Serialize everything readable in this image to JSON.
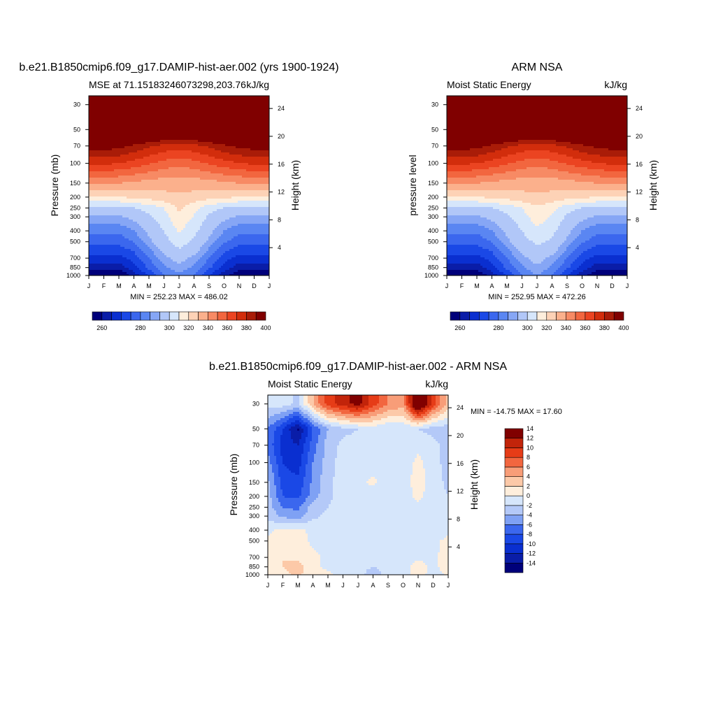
{
  "chart_data": [
    {
      "type": "heatmap",
      "title": "b.e21.B1850cmip6.f09_g17.DAMIP-hist-aer.002 (yrs 1900-1924)",
      "left_string": "MSE at 71.15183246073298,203.76",
      "right_string": "kJ/kg",
      "ylabel": "Pressure (mb)",
      "ylabel_right": "Height (km)",
      "x_ticks": [
        "J",
        "F",
        "M",
        "A",
        "M",
        "J",
        "J",
        "A",
        "S",
        "O",
        "N",
        "D",
        "J"
      ],
      "y_ticks": [
        30,
        50,
        70,
        100,
        150,
        200,
        250,
        300,
        400,
        500,
        700,
        850,
        1000
      ],
      "y_ticks_right": [
        4,
        8,
        12,
        16,
        20,
        24
      ],
      "stats": "MIN = 252.23 MAX = 486.02",
      "min": 252.23,
      "max": 486.02,
      "levels": [
        260,
        265,
        270,
        275,
        280,
        285,
        290,
        300,
        310,
        320,
        330,
        340,
        350,
        360,
        370,
        380,
        390,
        400
      ],
      "colorbar_labels": [
        "260",
        "280",
        "300",
        "320",
        "340",
        "360",
        "380",
        "400"
      ],
      "rows": [
        {
          "p": 1000,
          "v": [
            254,
            254,
            254,
            262,
            271,
            280,
            284,
            280,
            270,
            262,
            256,
            254,
            254
          ]
        },
        {
          "p": 850,
          "v": [
            262,
            262,
            262,
            268,
            276,
            284,
            288,
            284,
            276,
            268,
            262,
            262,
            262
          ]
        },
        {
          "p": 700,
          "v": [
            268,
            268,
            268,
            272,
            280,
            288,
            293,
            288,
            280,
            272,
            268,
            268,
            268
          ]
        },
        {
          "p": 500,
          "v": [
            277,
            277,
            277,
            280,
            288,
            296,
            305,
            298,
            288,
            281,
            277,
            277,
            277
          ]
        },
        {
          "p": 400,
          "v": [
            281,
            281,
            281,
            285,
            292,
            300,
            311,
            303,
            292,
            285,
            281,
            281,
            281
          ]
        },
        {
          "p": 300,
          "v": [
            289,
            289,
            289,
            292,
            298,
            306,
            318,
            309,
            298,
            292,
            289,
            289,
            289
          ]
        },
        {
          "p": 250,
          "v": [
            296,
            296,
            296,
            300,
            304,
            310,
            322,
            313,
            304,
            300,
            296,
            296,
            296
          ]
        },
        {
          "p": 200,
          "v": [
            319,
            319,
            320,
            322,
            324,
            327,
            329,
            327,
            324,
            322,
            320,
            319,
            319
          ]
        },
        {
          "p": 150,
          "v": [
            342,
            342,
            340,
            338,
            336,
            334,
            333,
            334,
            336,
            338,
            340,
            342,
            342
          ]
        },
        {
          "p": 100,
          "v": [
            372,
            372,
            370,
            366,
            361,
            356,
            354,
            356,
            361,
            366,
            369,
            372,
            372
          ]
        },
        {
          "p": 70,
          "v": [
            395,
            395,
            394,
            388,
            382,
            377,
            374,
            377,
            382,
            388,
            393,
            395,
            395
          ]
        },
        {
          "p": 50,
          "v": [
            430,
            430,
            428,
            424,
            420,
            416,
            414,
            416,
            420,
            424,
            428,
            430,
            430
          ]
        },
        {
          "p": 30,
          "v": [
            480,
            480,
            480,
            478,
            476,
            474,
            472,
            474,
            476,
            478,
            480,
            480,
            480
          ]
        }
      ]
    },
    {
      "type": "heatmap",
      "title": "ARM NSA",
      "left_string": "Moist Static Energy",
      "right_string": "kJ/kg",
      "ylabel": "pressure level",
      "ylabel_right": "Height (km)",
      "x_ticks": [
        "J",
        "F",
        "M",
        "A",
        "M",
        "J",
        "J",
        "A",
        "S",
        "O",
        "N",
        "D",
        "J"
      ],
      "y_ticks": [
        30,
        50,
        70,
        100,
        150,
        200,
        250,
        300,
        400,
        500,
        700,
        850,
        1000
      ],
      "y_ticks_right": [
        4,
        8,
        12,
        16,
        20,
        24
      ],
      "stats": "MIN = 252.95 MAX = 472.26",
      "min": 252.95,
      "max": 472.26,
      "levels": [
        260,
        265,
        270,
        275,
        280,
        285,
        290,
        300,
        310,
        320,
        330,
        340,
        350,
        360,
        370,
        380,
        390,
        400
      ],
      "colorbar_labels": [
        "260",
        "280",
        "300",
        "320",
        "340",
        "360",
        "380",
        "400"
      ],
      "rows": [
        {
          "p": 1000,
          "v": [
            255,
            255,
            255,
            262,
            271,
            280,
            285,
            280,
            270,
            262,
            256,
            255,
            255
          ]
        },
        {
          "p": 850,
          "v": [
            262,
            262,
            262,
            268,
            276,
            284,
            289,
            284,
            276,
            268,
            262,
            262,
            262
          ]
        },
        {
          "p": 700,
          "v": [
            268,
            268,
            268,
            272,
            280,
            288,
            293,
            288,
            280,
            272,
            268,
            268,
            268
          ]
        },
        {
          "p": 500,
          "v": [
            277,
            277,
            277,
            280,
            288,
            296,
            302,
            298,
            288,
            281,
            277,
            277,
            277
          ]
        },
        {
          "p": 400,
          "v": [
            281,
            281,
            281,
            285,
            292,
            300,
            308,
            303,
            292,
            285,
            281,
            281,
            281
          ]
        },
        {
          "p": 300,
          "v": [
            289,
            289,
            289,
            292,
            298,
            306,
            315,
            309,
            298,
            292,
            289,
            289,
            289
          ]
        },
        {
          "p": 250,
          "v": [
            296,
            296,
            296,
            300,
            304,
            310,
            318,
            313,
            304,
            300,
            296,
            296,
            296
          ]
        },
        {
          "p": 200,
          "v": [
            319,
            319,
            320,
            322,
            324,
            327,
            329,
            327,
            324,
            322,
            320,
            319,
            319
          ]
        },
        {
          "p": 150,
          "v": [
            342,
            342,
            340,
            338,
            336,
            334,
            333,
            334,
            336,
            338,
            340,
            342,
            342
          ]
        },
        {
          "p": 100,
          "v": [
            372,
            372,
            370,
            366,
            361,
            356,
            354,
            356,
            361,
            366,
            369,
            372,
            372
          ]
        },
        {
          "p": 70,
          "v": [
            395,
            395,
            394,
            388,
            382,
            377,
            374,
            377,
            382,
            388,
            393,
            395,
            395
          ]
        },
        {
          "p": 50,
          "v": [
            430,
            430,
            428,
            424,
            420,
            416,
            414,
            416,
            420,
            424,
            428,
            430,
            430
          ]
        },
        {
          "p": 30,
          "v": [
            470,
            470,
            470,
            468,
            466,
            464,
            462,
            464,
            466,
            468,
            470,
            470,
            470
          ]
        }
      ]
    },
    {
      "type": "heatmap",
      "title": "b.e21.B1850cmip6.f09_g17.DAMIP-hist-aer.002 - ARM NSA",
      "left_string": "Moist Static Energy",
      "right_string": "kJ/kg",
      "ylabel": "Pressure (mb)",
      "ylabel_right": "Height (km)",
      "x_ticks": [
        "J",
        "F",
        "M",
        "A",
        "M",
        "J",
        "J",
        "A",
        "S",
        "O",
        "N",
        "D",
        "J"
      ],
      "y_ticks": [
        30,
        50,
        70,
        100,
        150,
        200,
        250,
        300,
        400,
        500,
        700,
        850,
        1000
      ],
      "y_ticks_right": [
        4,
        8,
        12,
        16,
        20,
        24
      ],
      "stats": "MIN = -14.75 MAX =  17.60",
      "min": -14.75,
      "max": 17.6,
      "levels": [
        -14,
        -12,
        -10,
        -8,
        -6,
        -4,
        -2,
        0,
        2,
        4,
        6,
        8,
        10,
        12,
        14
      ],
      "colorbar_labels": [
        "-14",
        "-12",
        "-10",
        "-8",
        "-6",
        "-4",
        "-2",
        "0",
        "2",
        "4",
        "6",
        "8",
        "10",
        "12",
        "14"
      ],
      "rows": [
        {
          "p": 1000,
          "v": [
            0.5,
            1.5,
            2.5,
            0.5,
            0.5,
            -1,
            -1,
            -3.5,
            -1,
            -1,
            1,
            -1,
            0.5
          ]
        },
        {
          "p": 850,
          "v": [
            1,
            2,
            3,
            0.5,
            -0.5,
            -1,
            -1,
            -2,
            -1,
            -1,
            1,
            -0.5,
            1
          ]
        },
        {
          "p": 700,
          "v": [
            1.5,
            2,
            1.5,
            0.5,
            -0.5,
            -1,
            -1,
            -1.5,
            -1,
            -0.5,
            -0.5,
            -0.5,
            1
          ]
        },
        {
          "p": 500,
          "v": [
            0.5,
            1.5,
            1,
            -0.5,
            -0.5,
            -1,
            -1,
            -1,
            -1,
            -0.5,
            -0.5,
            -0.5,
            0.5
          ]
        },
        {
          "p": 400,
          "v": [
            -0.5,
            0.5,
            0.5,
            -0.5,
            -1,
            -1,
            -1,
            -1,
            -1,
            -1,
            -0.5,
            -1,
            -0.5
          ]
        },
        {
          "p": 300,
          "v": [
            -2.5,
            -4.5,
            -5,
            -2.5,
            -1.5,
            -1,
            -1,
            -1,
            -1,
            -1,
            -1,
            -1,
            -1.5
          ]
        },
        {
          "p": 250,
          "v": [
            -3,
            -6,
            -6.5,
            -3,
            -2,
            -1,
            -0.5,
            -1.5,
            -1.5,
            -1,
            -0.5,
            -1,
            -2
          ]
        },
        {
          "p": 200,
          "v": [
            -3,
            -8,
            -8.5,
            -5,
            -2.5,
            -1,
            -0.5,
            -2,
            -2,
            -1,
            0.5,
            -1,
            -2
          ]
        },
        {
          "p": 150,
          "v": [
            -3.5,
            -9,
            -9.5,
            -5.5,
            -2.5,
            -1,
            -0.5,
            0.5,
            -1,
            -1,
            1,
            -1,
            -2.5
          ]
        },
        {
          "p": 100,
          "v": [
            -5,
            -10,
            -11,
            -6,
            -3,
            -1,
            -1,
            -1,
            -1.5,
            -1,
            0.5,
            -1,
            -3
          ]
        },
        {
          "p": 70,
          "v": [
            -6.5,
            -11,
            -12,
            -7,
            -3,
            -1.5,
            -1.5,
            -1,
            -2,
            -1,
            -0.5,
            -1,
            -3.5
          ]
        },
        {
          "p": 50,
          "v": [
            -6,
            -10,
            -14.5,
            -8,
            -4,
            -2.5,
            -2,
            -1,
            -2,
            -1.5,
            -2,
            -3,
            -3
          ]
        },
        {
          "p": 30,
          "v": [
            -1,
            -1,
            -2.5,
            4,
            9,
            11,
            13,
            9,
            6,
            5,
            17.5,
            9,
            3
          ]
        }
      ]
    }
  ]
}
